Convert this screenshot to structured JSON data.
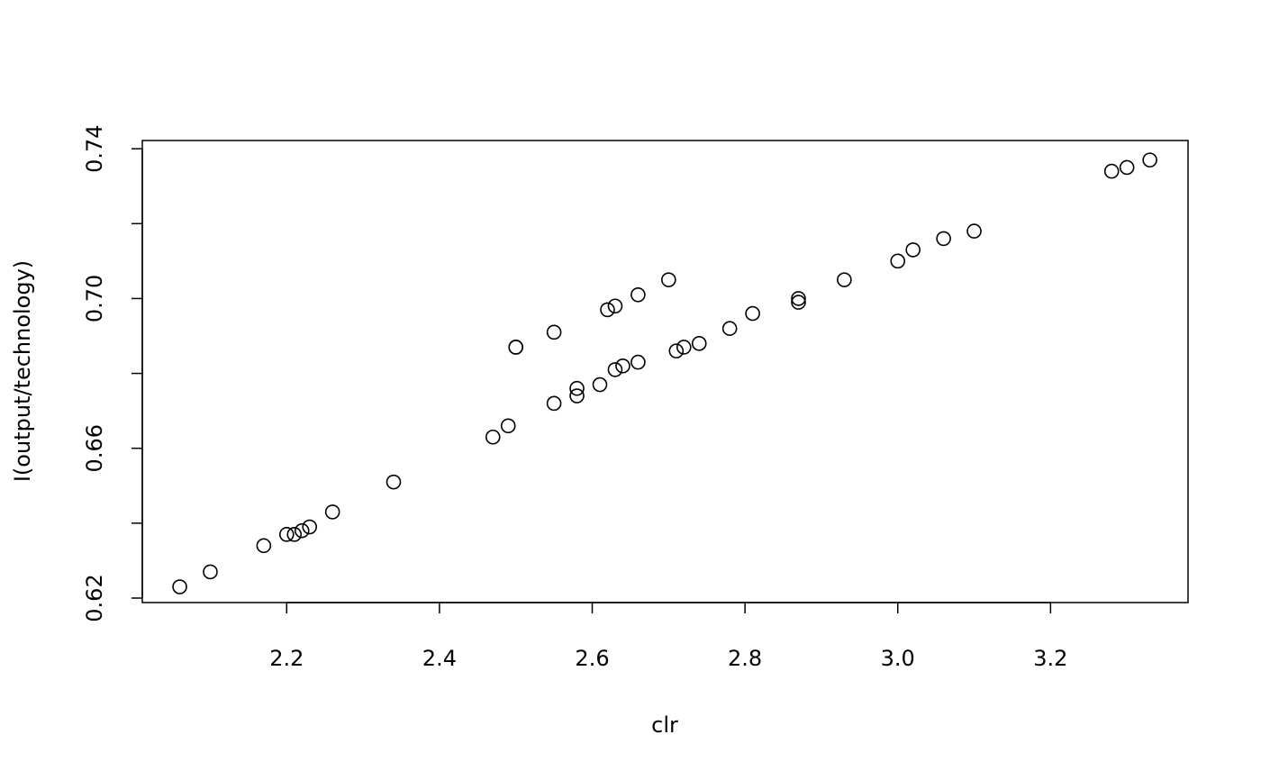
{
  "chart_data": {
    "type": "scatter",
    "title": "",
    "xlabel": "clr",
    "ylabel": "I(output/technology)",
    "xlim": [
      2.011,
      3.38
    ],
    "ylim": [
      0.6188,
      0.7422
    ],
    "x_ticks": [
      2.2,
      2.4,
      2.6,
      2.8,
      3.0,
      3.2
    ],
    "x_tick_labels": [
      "2.2",
      "2.4",
      "2.6",
      "2.8",
      "3.0",
      "3.2"
    ],
    "y_ticks": [
      0.62,
      0.64,
      0.66,
      0.68,
      0.7,
      0.72,
      0.74
    ],
    "y_tick_labels": [
      "0.62",
      "",
      "0.66",
      "",
      "0.70",
      "",
      "0.74"
    ],
    "grid": false,
    "marker": "open-circle",
    "color": "#000000",
    "points": [
      [
        2.06,
        0.623
      ],
      [
        2.1,
        0.627
      ],
      [
        2.17,
        0.634
      ],
      [
        2.2,
        0.637
      ],
      [
        2.21,
        0.637
      ],
      [
        2.22,
        0.638
      ],
      [
        2.23,
        0.639
      ],
      [
        2.26,
        0.643
      ],
      [
        2.34,
        0.651
      ],
      [
        2.47,
        0.663
      ],
      [
        2.49,
        0.666
      ],
      [
        2.5,
        0.687
      ],
      [
        2.5,
        0.687
      ],
      [
        2.55,
        0.691
      ],
      [
        2.55,
        0.672
      ],
      [
        2.58,
        0.676
      ],
      [
        2.58,
        0.674
      ],
      [
        2.61,
        0.677
      ],
      [
        2.62,
        0.697
      ],
      [
        2.63,
        0.681
      ],
      [
        2.63,
        0.698
      ],
      [
        2.64,
        0.682
      ],
      [
        2.66,
        0.683
      ],
      [
        2.66,
        0.701
      ],
      [
        2.7,
        0.705
      ],
      [
        2.71,
        0.686
      ],
      [
        2.72,
        0.687
      ],
      [
        2.74,
        0.688
      ],
      [
        2.78,
        0.692
      ],
      [
        2.81,
        0.696
      ],
      [
        2.87,
        0.7
      ],
      [
        2.87,
        0.699
      ],
      [
        2.93,
        0.705
      ],
      [
        3.0,
        0.71
      ],
      [
        3.02,
        0.713
      ],
      [
        3.06,
        0.716
      ],
      [
        3.1,
        0.718
      ],
      [
        3.28,
        0.734
      ],
      [
        3.3,
        0.735
      ],
      [
        3.33,
        0.737
      ]
    ]
  }
}
